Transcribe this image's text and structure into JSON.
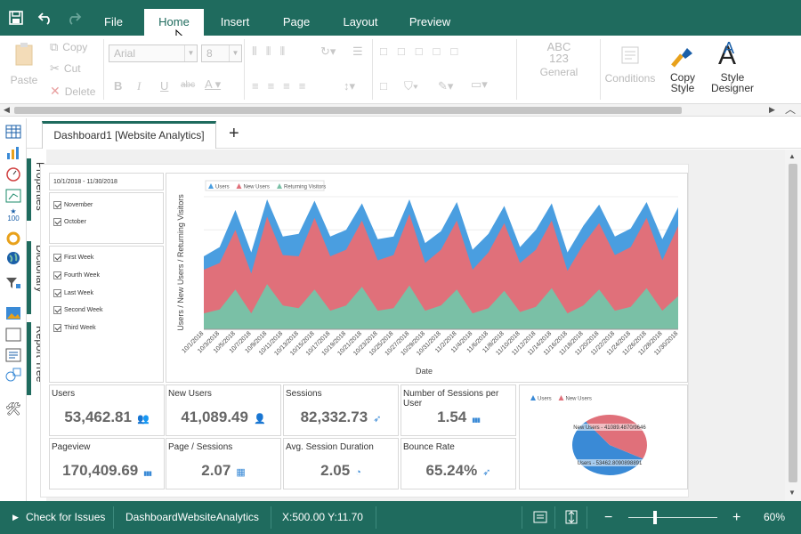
{
  "menu": {
    "tabs": [
      "File",
      "Home",
      "Insert",
      "Page",
      "Layout",
      "Preview"
    ],
    "active_tab": "Home"
  },
  "ribbon": {
    "paste": "Paste",
    "copy": "Copy",
    "cut": "Cut",
    "delete": "Delete",
    "font_name": "Arial",
    "font_size": "8",
    "bold": "B",
    "italic": "I",
    "underline": "U",
    "strikethrough": "abc",
    "format_sample": "ABC\n123",
    "format_label": "General",
    "conditions": "Conditions",
    "copy_style": "Copy\nStyle",
    "style_designer": "Style\nDesigner"
  },
  "doc_tabs": [
    "Dashboard1 [Website Analytics]"
  ],
  "side_tabs": [
    "Properties",
    "Dictionary",
    "Report Tree"
  ],
  "dashboard": {
    "date_range": "10/1/2018 - 11/30/2018",
    "months": [
      "November",
      "October"
    ],
    "weeks": [
      "First Week",
      "Fourth Week",
      "Last Week",
      "Second Week",
      "Third Week"
    ],
    "kpis": [
      {
        "title": "Users",
        "value": "53,462.81",
        "icon": "users-icon"
      },
      {
        "title": "New Users",
        "value": "41,089.49",
        "icon": "user-icon"
      },
      {
        "title": "Sessions",
        "value": "82,332.73",
        "icon": "cursor-icon"
      },
      {
        "title": "Number of Sessions per User",
        "value": "1.54",
        "icon": "bars-icon"
      },
      {
        "title": "Pageview",
        "value": "170,409.69",
        "icon": "bars-icon"
      },
      {
        "title": "Page / Sessions",
        "value": "2.07",
        "icon": "grid-icon"
      },
      {
        "title": "Avg. Session Duration",
        "value": "2.05",
        "icon": "pie-icon"
      },
      {
        "title": "Bounce Rate",
        "value": "65.24%",
        "icon": "cursor-icon"
      }
    ],
    "pie_labels": [
      "New Users - 41089.4870/9646",
      "Users - 53462.8090898891"
    ]
  },
  "chart_data": [
    {
      "type": "area",
      "xlabel": "Date",
      "ylabel": "Users / New Users / Returning Visitors",
      "legend": [
        "Users",
        "New Users",
        "Returning Visitors"
      ],
      "legend_position": "top-left",
      "x": [
        "10/1/2018",
        "10/3/2018",
        "10/5/2018",
        "10/7/2018",
        "10/9/2018",
        "10/11/2018",
        "10/13/2018",
        "10/15/2018",
        "10/17/2018",
        "10/19/2018",
        "10/21/2018",
        "10/23/2018",
        "10/25/2018",
        "10/27/2018",
        "10/29/2018",
        "10/31/2018",
        "11/2/2018",
        "11/4/2018",
        "11/6/2018",
        "11/8/2018",
        "11/10/2018",
        "11/12/2018",
        "11/14/2018",
        "11/16/2018",
        "11/18/2018",
        "11/20/2018",
        "11/22/2018",
        "11/24/2018",
        "11/26/2018",
        "11/28/2018",
        "11/30/2018"
      ],
      "series": [
        {
          "name": "Users",
          "color": "#4a9ee0",
          "values": [
            0.55,
            0.62,
            0.9,
            0.58,
            0.98,
            0.7,
            0.72,
            0.97,
            0.7,
            0.75,
            0.95,
            0.68,
            0.7,
            0.98,
            0.65,
            0.74,
            0.96,
            0.6,
            0.72,
            0.93,
            0.62,
            0.75,
            0.95,
            0.58,
            0.78,
            0.94,
            0.7,
            0.76,
            0.96,
            0.68,
            0.92
          ]
        },
        {
          "name": "New Users",
          "color": "#e0707a",
          "values": [
            0.45,
            0.5,
            0.75,
            0.42,
            0.85,
            0.56,
            0.55,
            0.84,
            0.55,
            0.6,
            0.82,
            0.52,
            0.56,
            0.87,
            0.5,
            0.6,
            0.82,
            0.45,
            0.58,
            0.8,
            0.5,
            0.6,
            0.82,
            0.44,
            0.64,
            0.8,
            0.56,
            0.62,
            0.84,
            0.52,
            0.78
          ]
        },
        {
          "name": "Returning Visitors",
          "color": "#7ac0a6",
          "values": [
            0.12,
            0.15,
            0.3,
            0.12,
            0.34,
            0.18,
            0.16,
            0.3,
            0.14,
            0.18,
            0.32,
            0.14,
            0.16,
            0.33,
            0.14,
            0.18,
            0.3,
            0.12,
            0.16,
            0.29,
            0.13,
            0.17,
            0.31,
            0.12,
            0.18,
            0.3,
            0.14,
            0.17,
            0.31,
            0.14,
            0.25
          ]
        }
      ]
    },
    {
      "type": "pie",
      "legend": [
        "Users",
        "New Users"
      ],
      "legend_position": "top",
      "labels": [
        "Users",
        "New Users"
      ],
      "values": [
        53462.81,
        41089.49
      ],
      "colors": [
        "#3a8ad6",
        "#e0707a"
      ]
    }
  ],
  "status": {
    "check_issues": "Check for Issues",
    "report_name": "DashboardWebsiteAnalytics",
    "coords": "X:500.00 Y:11.70",
    "zoom": "60%",
    "zoom_level": 0.6
  }
}
